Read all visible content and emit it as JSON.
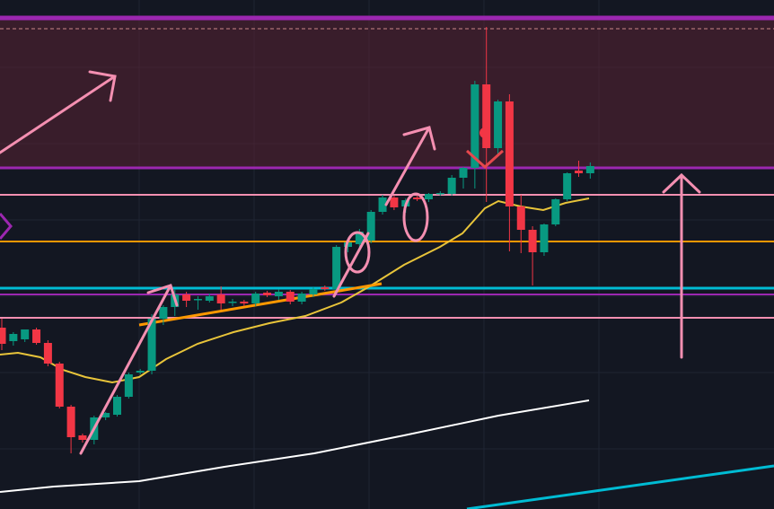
{
  "chart_data": {
    "type": "candlestick",
    "ylim": [
      0,
      567
    ],
    "up_color": "#089981",
    "down_color": "#f23645",
    "open": [
      202,
      187,
      189,
      200,
      185,
      162,
      114,
      82,
      77,
      102,
      105,
      125,
      152,
      154,
      212,
      225,
      239,
      233,
      232,
      239,
      230,
      231,
      229,
      241,
      237,
      242,
      231,
      239,
      247,
      245,
      292,
      295,
      299,
      331,
      347,
      337,
      347,
      345,
      351,
      351,
      369,
      380,
      473,
      402,
      454,
      337,
      311,
      286,
      317,
      345,
      377,
      374
    ],
    "high": [
      212,
      197,
      200,
      202,
      188,
      164,
      116,
      84,
      104,
      108,
      127,
      152,
      156,
      217,
      227,
      245,
      242,
      237,
      240,
      248,
      234,
      233,
      242,
      243,
      245,
      244,
      242,
      247,
      249,
      294,
      300,
      312,
      333,
      350,
      349,
      346,
      350,
      352,
      354,
      372,
      381,
      477,
      537,
      456,
      462,
      350,
      315,
      318,
      346,
      375,
      388,
      386
    ],
    "low": [
      177,
      182,
      186,
      183,
      159,
      112,
      62,
      74,
      72,
      99,
      103,
      123,
      150,
      150,
      205,
      215,
      225,
      222,
      230,
      222,
      226,
      226,
      226,
      236,
      233,
      228,
      228,
      236,
      243,
      240,
      286,
      290,
      296,
      328,
      333,
      330,
      343,
      342,
      349,
      349,
      357,
      357,
      342,
      395,
      287,
      285,
      249,
      282,
      315,
      343,
      370,
      368
    ],
    "close": [
      184,
      195,
      200,
      185,
      162,
      114,
      80,
      77,
      102,
      107,
      125,
      150,
      154,
      212,
      225,
      239,
      232,
      234,
      237,
      229,
      231,
      229,
      240,
      238,
      242,
      231,
      240,
      245,
      245,
      292,
      297,
      309,
      331,
      347,
      336,
      344,
      345,
      351,
      352,
      369,
      380,
      473,
      402,
      454,
      337,
      311,
      286,
      317,
      345,
      374,
      374,
      382
    ]
  }
}
